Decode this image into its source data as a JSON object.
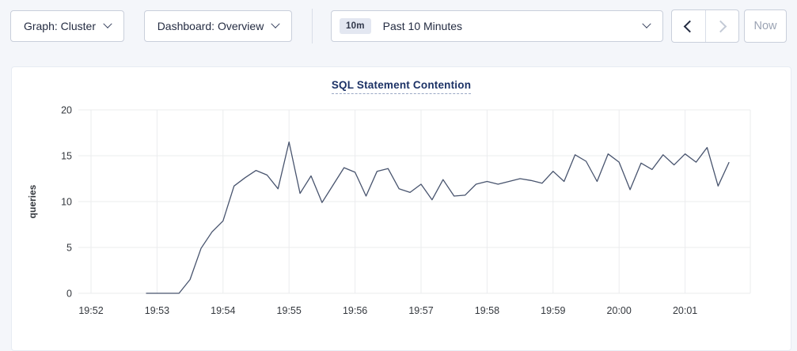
{
  "toolbar": {
    "graph_label": "Graph: Cluster",
    "dashboard_label": "Dashboard: Overview",
    "time_badge": "10m",
    "time_label": "Past 10 Minutes",
    "now_label": "Now"
  },
  "chart_data": {
    "type": "line",
    "title": "SQL Statement Contention",
    "ylabel": "queries",
    "ylim": [
      0,
      20
    ],
    "yticks": [
      0,
      5,
      10,
      15,
      20
    ],
    "xticks": [
      "19:52",
      "19:53",
      "19:54",
      "19:55",
      "19:56",
      "19:57",
      "19:58",
      "19:59",
      "20:00",
      "20:01"
    ],
    "x_start": "19:52:50",
    "x_interval_seconds": 10,
    "grid": true,
    "legend": "none",
    "series": [
      {
        "name": "queries",
        "color": "#48546e",
        "values": [
          0,
          0,
          0,
          0,
          1.5,
          4.9,
          6.7,
          7.9,
          11.7,
          12.6,
          13.4,
          12.9,
          11.4,
          16.5,
          10.9,
          12.8,
          9.9,
          11.8,
          13.7,
          13.2,
          10.6,
          13.3,
          13.6,
          11.4,
          11.0,
          11.9,
          10.2,
          12.4,
          10.6,
          10.7,
          11.9,
          12.2,
          11.9,
          12.2,
          12.5,
          12.3,
          12.0,
          13.3,
          12.2,
          15.1,
          14.4,
          12.2,
          15.2,
          14.3,
          11.3,
          14.2,
          13.5,
          15.1,
          14.0,
          15.2,
          14.3,
          15.9,
          11.7,
          14.3
        ]
      }
    ],
    "colors": {
      "gridline": "#ebecee",
      "tick_text": "#33373d",
      "title": "#1c3266"
    }
  }
}
